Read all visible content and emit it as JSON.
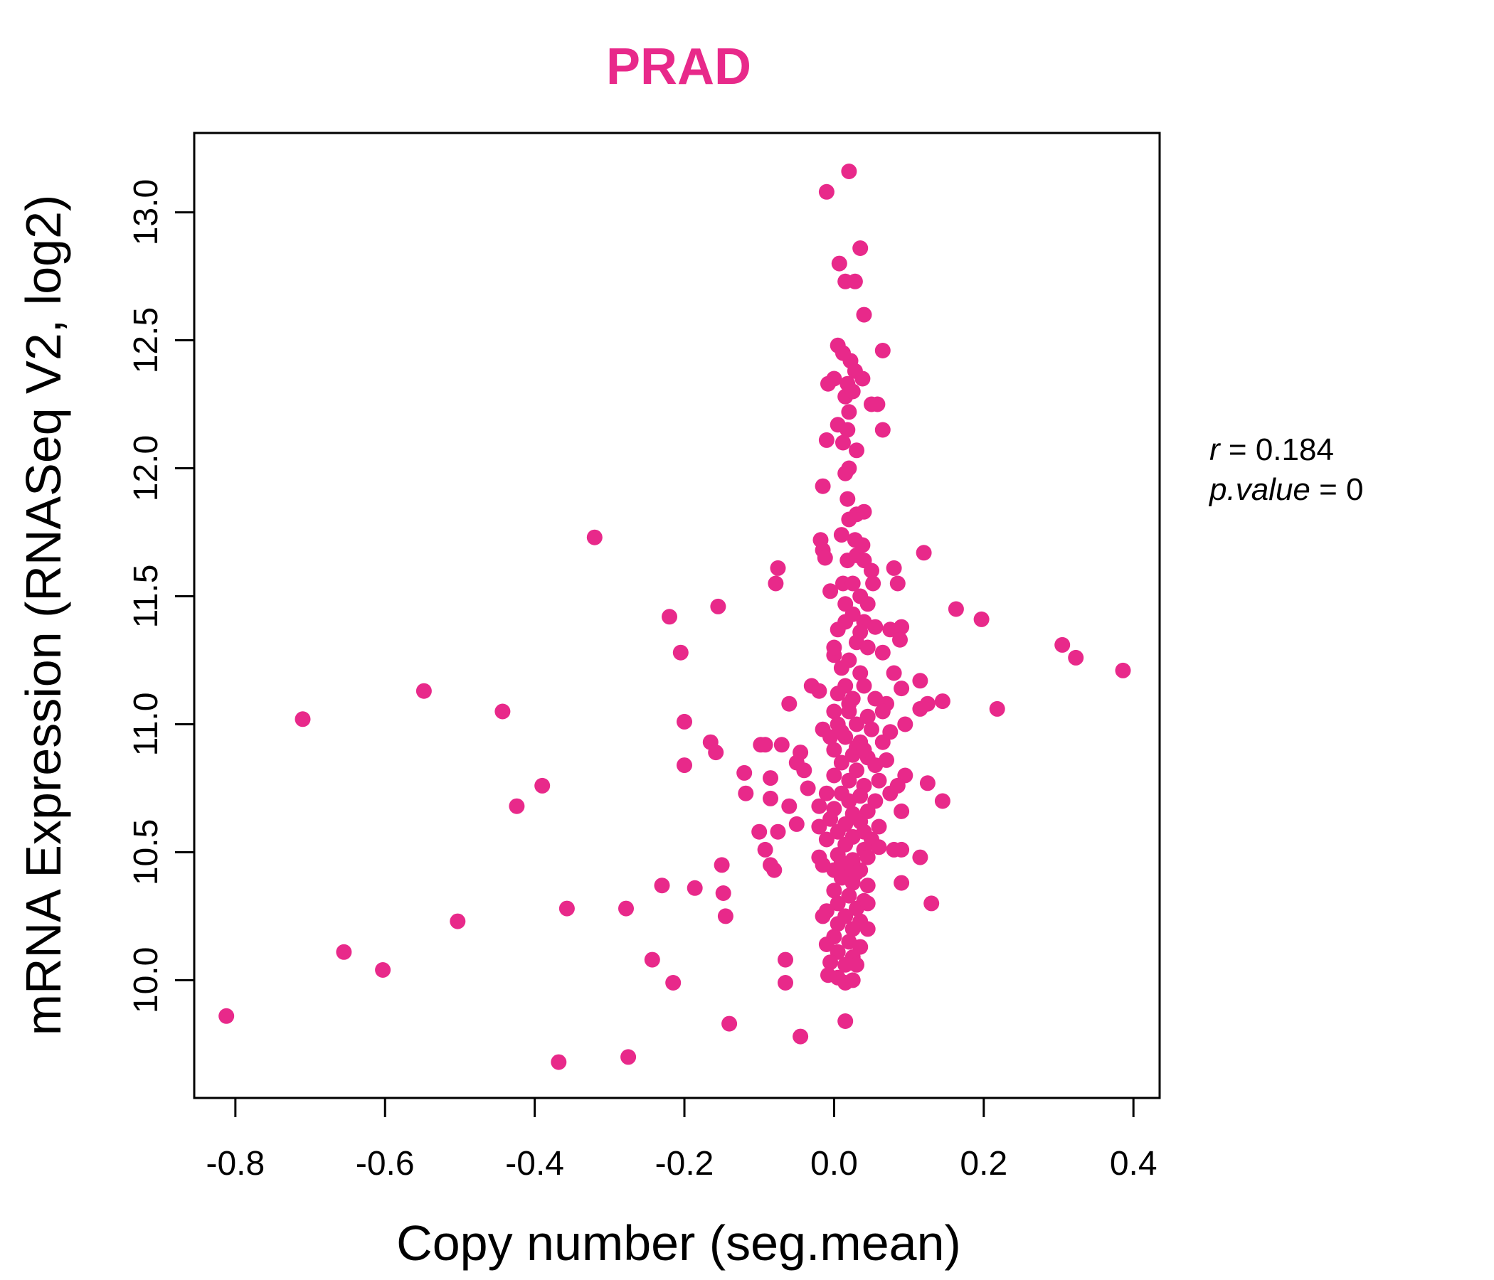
{
  "chart_data": {
    "type": "scatter",
    "title": "PRAD",
    "xlabel": "Copy number (seg.mean)",
    "ylabel": "mRNA Expression (RNASeq V2, log2)",
    "xlim": [
      -0.855,
      0.435
    ],
    "ylim": [
      9.54,
      13.31
    ],
    "xticks": [
      -0.8,
      -0.6,
      -0.4,
      -0.2,
      0.0,
      0.2,
      0.4
    ],
    "xtick_labels": [
      "-0.8",
      "-0.6",
      "-0.4",
      "-0.2",
      "0.0",
      "0.2",
      "0.4"
    ],
    "yticks": [
      10.0,
      10.5,
      11.0,
      11.5,
      12.0,
      12.5,
      13.0
    ],
    "ytick_labels": [
      "10.0",
      "10.5",
      "11.0",
      "11.5",
      "12.0",
      "12.5",
      "13.0"
    ],
    "grid": false,
    "color": "#E8298A",
    "series": [
      {
        "points": [
          [
            0.02,
            13.16
          ],
          [
            -0.01,
            13.08
          ],
          [
            0.035,
            12.86
          ],
          [
            0.007,
            12.8
          ],
          [
            0.015,
            12.73
          ],
          [
            0.028,
            12.73
          ],
          [
            0.04,
            12.6
          ],
          [
            0.065,
            12.46
          ],
          [
            0.005,
            12.48
          ],
          [
            0.012,
            12.45
          ],
          [
            0.022,
            12.42
          ],
          [
            0.028,
            12.38
          ],
          [
            0.0,
            12.35
          ],
          [
            0.018,
            12.33
          ],
          [
            -0.008,
            12.33
          ],
          [
            0.038,
            12.35
          ],
          [
            0.015,
            12.28
          ],
          [
            0.025,
            12.3
          ],
          [
            0.05,
            12.25
          ],
          [
            0.058,
            12.25
          ],
          [
            0.02,
            12.22
          ],
          [
            0.005,
            12.17
          ],
          [
            0.018,
            12.15
          ],
          [
            0.065,
            12.15
          ],
          [
            -0.01,
            12.11
          ],
          [
            0.012,
            12.1
          ],
          [
            0.03,
            12.07
          ],
          [
            0.015,
            11.98
          ],
          [
            0.02,
            12.0
          ],
          [
            -0.015,
            11.93
          ],
          [
            0.018,
            11.88
          ],
          [
            0.03,
            11.82
          ],
          [
            0.04,
            11.83
          ],
          [
            0.02,
            11.8
          ],
          [
            -0.018,
            11.72
          ],
          [
            0.01,
            11.74
          ],
          [
            0.028,
            11.72
          ],
          [
            0.038,
            11.7
          ],
          [
            -0.015,
            11.68
          ],
          [
            0.018,
            11.64
          ],
          [
            0.03,
            11.66
          ],
          [
            0.04,
            11.64
          ],
          [
            0.05,
            11.6
          ],
          [
            -0.012,
            11.65
          ],
          [
            -0.075,
            11.61
          ],
          [
            0.08,
            11.61
          ],
          [
            0.12,
            11.67
          ],
          [
            -0.078,
            11.55
          ],
          [
            0.012,
            11.55
          ],
          [
            0.025,
            11.55
          ],
          [
            0.052,
            11.55
          ],
          [
            0.085,
            11.55
          ],
          [
            -0.005,
            11.52
          ],
          [
            0.035,
            11.5
          ],
          [
            0.015,
            11.47
          ],
          [
            0.045,
            11.47
          ],
          [
            0.025,
            11.43
          ],
          [
            0.04,
            11.4
          ],
          [
            0.055,
            11.38
          ],
          [
            0.015,
            11.4
          ],
          [
            0.005,
            11.37
          ],
          [
            0.035,
            11.36
          ],
          [
            0.075,
            11.37
          ],
          [
            0.09,
            11.38
          ],
          [
            0.03,
            11.32
          ],
          [
            0.045,
            11.3
          ],
          [
            0.065,
            11.28
          ],
          [
            0.088,
            11.33
          ],
          [
            0.0,
            11.27
          ],
          [
            0.02,
            11.25
          ],
          [
            0.08,
            11.2
          ],
          [
            0.01,
            11.22
          ],
          [
            0.035,
            11.2
          ],
          [
            0.04,
            11.15
          ],
          [
            0.015,
            11.15
          ],
          [
            0.005,
            11.12
          ],
          [
            0.025,
            11.1
          ],
          [
            0.055,
            11.1
          ],
          [
            0.07,
            11.08
          ],
          [
            0.09,
            11.14
          ],
          [
            0.115,
            11.17
          ],
          [
            -0.03,
            11.15
          ],
          [
            -0.02,
            11.13
          ],
          [
            -0.06,
            11.08
          ],
          [
            0.0,
            11.05
          ],
          [
            0.02,
            11.05
          ],
          [
            0.045,
            11.03
          ],
          [
            0.065,
            11.05
          ],
          [
            0.115,
            11.06
          ],
          [
            0.125,
            11.08
          ],
          [
            0.145,
            11.09
          ],
          [
            0.005,
            11.0
          ],
          [
            0.03,
            11.0
          ],
          [
            0.05,
            10.98
          ],
          [
            0.075,
            10.97
          ],
          [
            0.095,
            11.0
          ],
          [
            -0.015,
            10.98
          ],
          [
            -0.005,
            10.95
          ],
          [
            0.015,
            10.95
          ],
          [
            0.035,
            10.93
          ],
          [
            0.065,
            10.93
          ],
          [
            -0.07,
            10.92
          ],
          [
            -0.098,
            10.92
          ],
          [
            -0.092,
            10.92
          ],
          [
            -0.045,
            10.89
          ],
          [
            -0.05,
            10.85
          ],
          [
            0.0,
            10.9
          ],
          [
            0.025,
            10.88
          ],
          [
            0.045,
            10.87
          ],
          [
            0.07,
            10.86
          ],
          [
            0.01,
            10.85
          ],
          [
            0.03,
            10.82
          ],
          [
            0.055,
            10.84
          ],
          [
            -0.04,
            10.82
          ],
          [
            -0.085,
            10.79
          ],
          [
            -0.035,
            10.75
          ],
          [
            0.095,
            10.8
          ],
          [
            0.0,
            10.8
          ],
          [
            0.02,
            10.78
          ],
          [
            0.04,
            10.76
          ],
          [
            0.06,
            10.78
          ],
          [
            0.085,
            10.76
          ],
          [
            0.125,
            10.77
          ],
          [
            -0.01,
            10.73
          ],
          [
            0.01,
            10.73
          ],
          [
            0.035,
            10.72
          ],
          [
            0.055,
            10.7
          ],
          [
            0.075,
            10.73
          ],
          [
            -0.085,
            10.71
          ],
          [
            -0.06,
            10.68
          ],
          [
            -0.02,
            10.68
          ],
          [
            0.0,
            10.67
          ],
          [
            0.025,
            10.65
          ],
          [
            0.045,
            10.66
          ],
          [
            0.09,
            10.66
          ],
          [
            -0.005,
            10.63
          ],
          [
            0.015,
            10.61
          ],
          [
            0.035,
            10.62
          ],
          [
            0.06,
            10.6
          ],
          [
            0.145,
            10.7
          ],
          [
            -0.05,
            10.61
          ],
          [
            -0.075,
            10.58
          ],
          [
            -0.1,
            10.58
          ],
          [
            -0.02,
            10.6
          ],
          [
            0.005,
            10.58
          ],
          [
            0.025,
            10.56
          ],
          [
            0.05,
            10.55
          ],
          [
            0.015,
            10.53
          ],
          [
            0.04,
            10.51
          ],
          [
            0.06,
            10.52
          ],
          [
            -0.01,
            10.55
          ],
          [
            0.08,
            10.51
          ],
          [
            0.09,
            10.51
          ],
          [
            0.115,
            10.48
          ],
          [
            -0.092,
            10.51
          ],
          [
            0.005,
            10.49
          ],
          [
            0.025,
            10.47
          ],
          [
            0.045,
            10.48
          ],
          [
            -0.02,
            10.48
          ],
          [
            -0.015,
            10.45
          ],
          [
            0.0,
            10.43
          ],
          [
            0.015,
            10.43
          ],
          [
            0.035,
            10.43
          ],
          [
            -0.085,
            10.45
          ],
          [
            -0.08,
            10.43
          ],
          [
            0.01,
            10.4
          ],
          [
            0.025,
            10.38
          ],
          [
            0.045,
            10.37
          ],
          [
            0.09,
            10.38
          ],
          [
            0.0,
            10.35
          ],
          [
            0.02,
            10.33
          ],
          [
            0.04,
            10.31
          ],
          [
            0.13,
            10.3
          ],
          [
            0.005,
            10.3
          ],
          [
            0.03,
            10.28
          ],
          [
            0.045,
            10.3
          ],
          [
            -0.01,
            10.27
          ],
          [
            0.015,
            10.25
          ],
          [
            0.035,
            10.23
          ],
          [
            -0.015,
            10.25
          ],
          [
            0.005,
            10.22
          ],
          [
            0.025,
            10.2
          ],
          [
            0.045,
            10.2
          ],
          [
            0.0,
            10.17
          ],
          [
            0.02,
            10.15
          ],
          [
            0.035,
            10.13
          ],
          [
            -0.01,
            10.14
          ],
          [
            0.005,
            10.11
          ],
          [
            0.025,
            10.09
          ],
          [
            -0.005,
            10.07
          ],
          [
            0.015,
            10.06
          ],
          [
            0.03,
            10.06
          ],
          [
            -0.008,
            10.02
          ],
          [
            0.005,
            10.01
          ],
          [
            0.015,
            9.99
          ],
          [
            0.025,
            10.0
          ],
          [
            -0.065,
            10.08
          ],
          [
            -0.065,
            9.99
          ],
          [
            0.015,
            9.84
          ],
          [
            -0.045,
            9.78
          ],
          [
            -0.14,
            9.83
          ],
          [
            -0.155,
            11.46
          ],
          [
            -0.22,
            11.42
          ],
          [
            -0.205,
            11.28
          ],
          [
            -0.2,
            11.01
          ],
          [
            -0.165,
            10.93
          ],
          [
            -0.158,
            10.89
          ],
          [
            -0.2,
            10.84
          ],
          [
            -0.12,
            10.81
          ],
          [
            -0.118,
            10.73
          ],
          [
            -0.15,
            10.45
          ],
          [
            -0.148,
            10.34
          ],
          [
            -0.145,
            10.25
          ],
          [
            -0.23,
            10.37
          ],
          [
            -0.186,
            10.36
          ],
          [
            -0.278,
            10.28
          ],
          [
            -0.357,
            10.28
          ],
          [
            -0.243,
            10.08
          ],
          [
            -0.215,
            9.99
          ],
          [
            -0.32,
            11.73
          ],
          [
            -0.548,
            11.13
          ],
          [
            -0.71,
            11.02
          ],
          [
            -0.443,
            11.05
          ],
          [
            -0.39,
            10.76
          ],
          [
            -0.424,
            10.68
          ],
          [
            -0.503,
            10.23
          ],
          [
            -0.655,
            10.11
          ],
          [
            -0.603,
            10.04
          ],
          [
            -0.812,
            9.86
          ],
          [
            -0.368,
            9.68
          ],
          [
            -0.275,
            9.7
          ],
          [
            0.163,
            11.45
          ],
          [
            0.197,
            11.41
          ],
          [
            0.305,
            11.31
          ],
          [
            0.323,
            11.26
          ],
          [
            0.386,
            11.21
          ],
          [
            0.218,
            11.06
          ],
          [
            0.01,
            10.97
          ],
          [
            0.03,
            10.91
          ],
          [
            0.02,
            10.7
          ],
          [
            0.04,
            10.58
          ],
          [
            0.01,
            10.46
          ],
          [
            0.03,
            10.42
          ],
          [
            0.0,
            11.3
          ],
          [
            0.02,
            11.08
          ],
          [
            0.04,
            10.9
          ]
        ]
      }
    ],
    "annotation": {
      "r_label": "r",
      "r_value": "0.184",
      "p_label": "p.value",
      "p_value": "0"
    }
  }
}
